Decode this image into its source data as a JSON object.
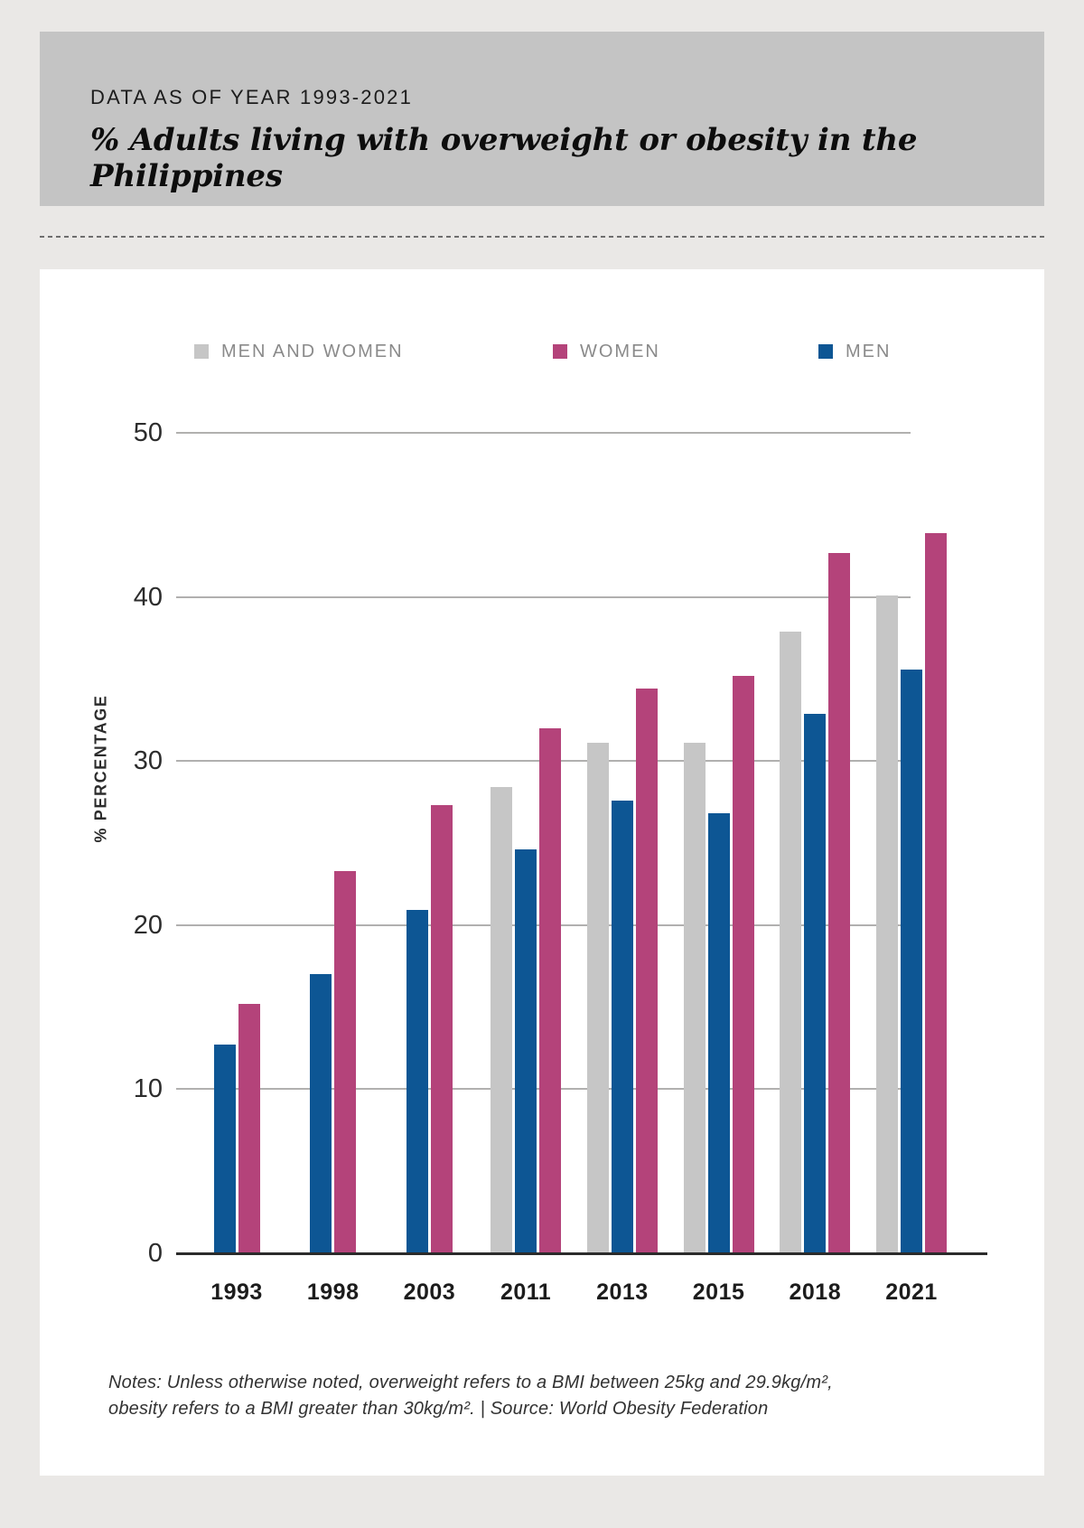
{
  "header": {
    "kicker": "DATA AS OF YEAR 1993-2021",
    "title": "% Adults living with overweight or obesity in the Philippines"
  },
  "legend": [
    {
      "label": "MEN AND WOMEN",
      "color": "#c6c6c6"
    },
    {
      "label": "WOMEN",
      "color": "#b4437a"
    },
    {
      "label": "MEN",
      "color": "#0d5694"
    }
  ],
  "chart_data": {
    "type": "bar",
    "title": "% Adults living with overweight or obesity in the Philippines",
    "categories": [
      "1993",
      "1998",
      "2003",
      "2011",
      "2013",
      "2015",
      "2018",
      "2021"
    ],
    "series": [
      {
        "name": "MEN AND WOMEN",
        "color": "#c6c6c6",
        "values": [
          null,
          null,
          null,
          28.4,
          31.1,
          31.1,
          37.9,
          40.1
        ]
      },
      {
        "name": "MEN",
        "color": "#0d5694",
        "values": [
          12.7,
          17.0,
          20.9,
          24.6,
          27.6,
          26.8,
          32.9,
          35.6
        ]
      },
      {
        "name": "WOMEN",
        "color": "#b4437a",
        "values": [
          15.2,
          23.3,
          27.3,
          32.0,
          34.4,
          35.2,
          42.7,
          43.9
        ]
      }
    ],
    "ylabel": "% PERCENTAGE",
    "xlabel": "",
    "yticks": [
      0,
      10,
      20,
      30,
      40,
      50
    ],
    "ylim": [
      0,
      50
    ],
    "grid": true,
    "legend_position": "top"
  },
  "notes": {
    "line1": "Notes: Unless otherwise noted, overweight refers to a BMI between 25kg and 29.9kg/m²,",
    "line2": "obesity refers to a BMI greater than 30kg/m².  |   Source: World Obesity Federation"
  }
}
